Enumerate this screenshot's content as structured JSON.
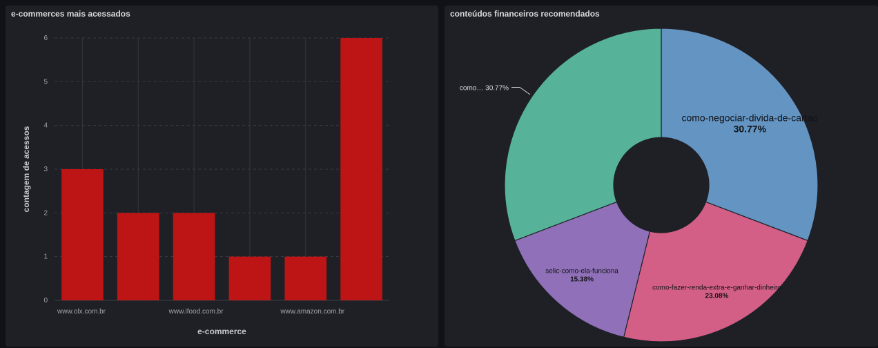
{
  "panels": {
    "left_title": "e-commerces mais acessados",
    "right_title": "conteúdos financeiros recomendados"
  },
  "chart_data": [
    {
      "type": "bar",
      "title": "e-commerces mais acessados",
      "xlabel": "e-commerce",
      "ylabel": "contagem de acessos",
      "categories": [
        "www.olx.com.br",
        "",
        "www.ifood.com.br",
        "",
        "www.amazon.com.br",
        ""
      ],
      "values": [
        3,
        2,
        2,
        1,
        1,
        6
      ],
      "ylim": [
        0,
        6
      ],
      "yticks": [
        "0",
        "1",
        "2",
        "3",
        "4",
        "5",
        "6"
      ],
      "bar_color": "#bd1515",
      "grid": true
    },
    {
      "type": "pie",
      "title": "conteúdos financeiros recomendados",
      "donut": true,
      "slices": [
        {
          "label": "como-negociar-divida-de-cartao",
          "value": 30.77,
          "pct_text": "30.77%",
          "color": "#6394c2"
        },
        {
          "label": "como-fazer-renda-extra-e-ganhar-dinheiro",
          "value": 23.08,
          "pct_text": "23.08%",
          "color": "#d35f86"
        },
        {
          "label": "selic-como-ela-funciona",
          "value": 15.38,
          "pct_text": "15.38%",
          "color": "#9071b9"
        },
        {
          "label": "como…",
          "value": 30.77,
          "pct_text": "30.77%",
          "color": "#56b39a",
          "outside_label": true
        }
      ]
    }
  ]
}
